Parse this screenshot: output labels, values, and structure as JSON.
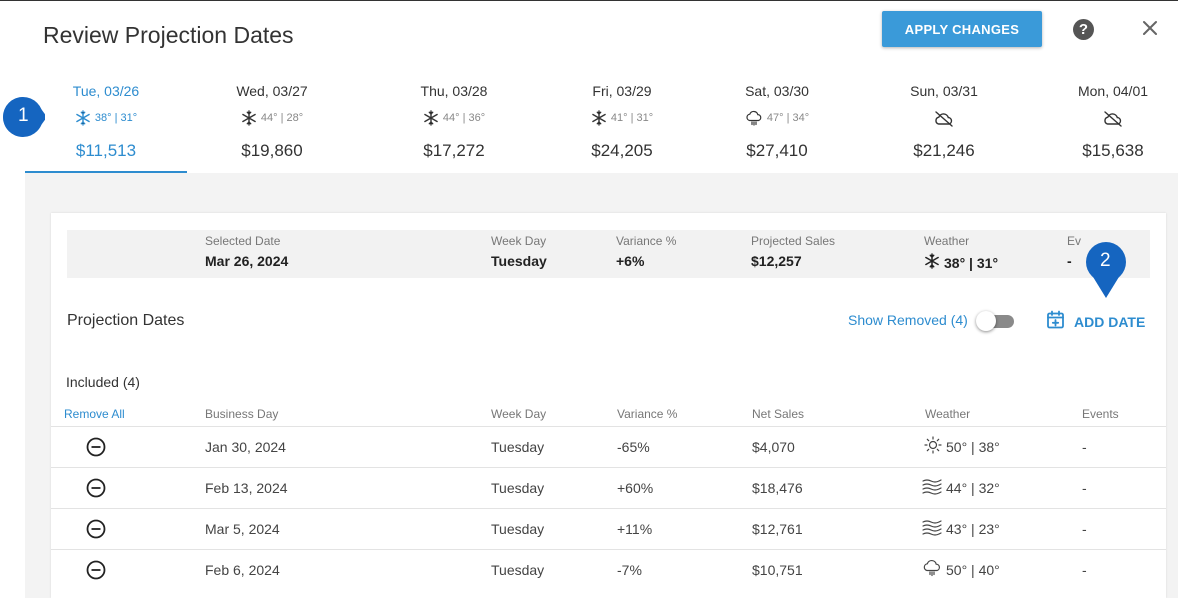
{
  "header": {
    "title": "Review Projection Dates",
    "apply_label": "APPLY CHANGES",
    "help_icon": "help-circle-icon",
    "close_icon": "close-icon"
  },
  "days": [
    {
      "label": "Tue, 03/26",
      "weather_icon": "snowflake-icon",
      "weather": "38° | 31°",
      "sales": "$11,513",
      "selected": true
    },
    {
      "label": "Wed, 03/27",
      "weather_icon": "snowflake-icon",
      "weather": "44° | 28°",
      "sales": "$19,860"
    },
    {
      "label": "Thu, 03/28",
      "weather_icon": "snowflake-icon",
      "weather": "44° | 36°",
      "sales": "$17,272"
    },
    {
      "label": "Fri, 03/29",
      "weather_icon": "snowflake-icon",
      "weather": "41° | 31°",
      "sales": "$24,205"
    },
    {
      "label": "Sat, 03/30",
      "weather_icon": "rain-cloud-icon",
      "weather": "47° | 34°",
      "sales": "$27,410"
    },
    {
      "label": "Sun, 03/31",
      "weather_icon": "cloud-off-icon",
      "weather": "",
      "sales": "$21,246"
    },
    {
      "label": "Mon, 04/01",
      "weather_icon": "cloud-off-icon",
      "weather": "",
      "sales": "$15,638"
    }
  ],
  "summary": {
    "selected_date_label": "Selected Date",
    "selected_date": "Mar 26, 2024",
    "week_day_label": "Week Day",
    "week_day": "Tuesday",
    "variance_label": "Variance %",
    "variance": "+6%",
    "projected_sales_label": "Projected Sales",
    "projected_sales": "$12,257",
    "weather_label": "Weather",
    "weather": "38° | 31°",
    "events_label": "Ev",
    "events": "-"
  },
  "projection": {
    "title": "Projection Dates",
    "show_removed": "Show Removed (4)",
    "add_date": "ADD DATE"
  },
  "table": {
    "included_label": "Included (4)",
    "remove_all": "Remove All",
    "headers": {
      "business_day": "Business Day",
      "week_day": "Week Day",
      "variance": "Variance %",
      "net_sales": "Net Sales",
      "weather": "Weather",
      "events": "Events"
    },
    "rows": [
      {
        "business_day": "Jan 30, 2024",
        "week_day": "Tuesday",
        "variance": "-65%",
        "net_sales": "$4,070",
        "weather_icon": "sun-icon",
        "weather": "50° | 38°",
        "events": "-"
      },
      {
        "business_day": "Feb 13, 2024",
        "week_day": "Tuesday",
        "variance": "+60%",
        "net_sales": "$18,476",
        "weather_icon": "wind-icon",
        "weather": "44° | 32°",
        "events": "-"
      },
      {
        "business_day": "Mar 5, 2024",
        "week_day": "Tuesday",
        "variance": "+11%",
        "net_sales": "$12,761",
        "weather_icon": "wind-icon",
        "weather": "43° | 23°",
        "events": "-"
      },
      {
        "business_day": "Feb 6, 2024",
        "week_day": "Tuesday",
        "variance": "-7%",
        "net_sales": "$10,751",
        "weather_icon": "rain-cloud-icon",
        "weather": "50° | 40°",
        "events": "-"
      }
    ]
  },
  "callouts": [
    "1",
    "2"
  ],
  "colors": {
    "accent": "#2d8ccf",
    "button": "#3a9ad9",
    "callout": "#1565c0"
  }
}
